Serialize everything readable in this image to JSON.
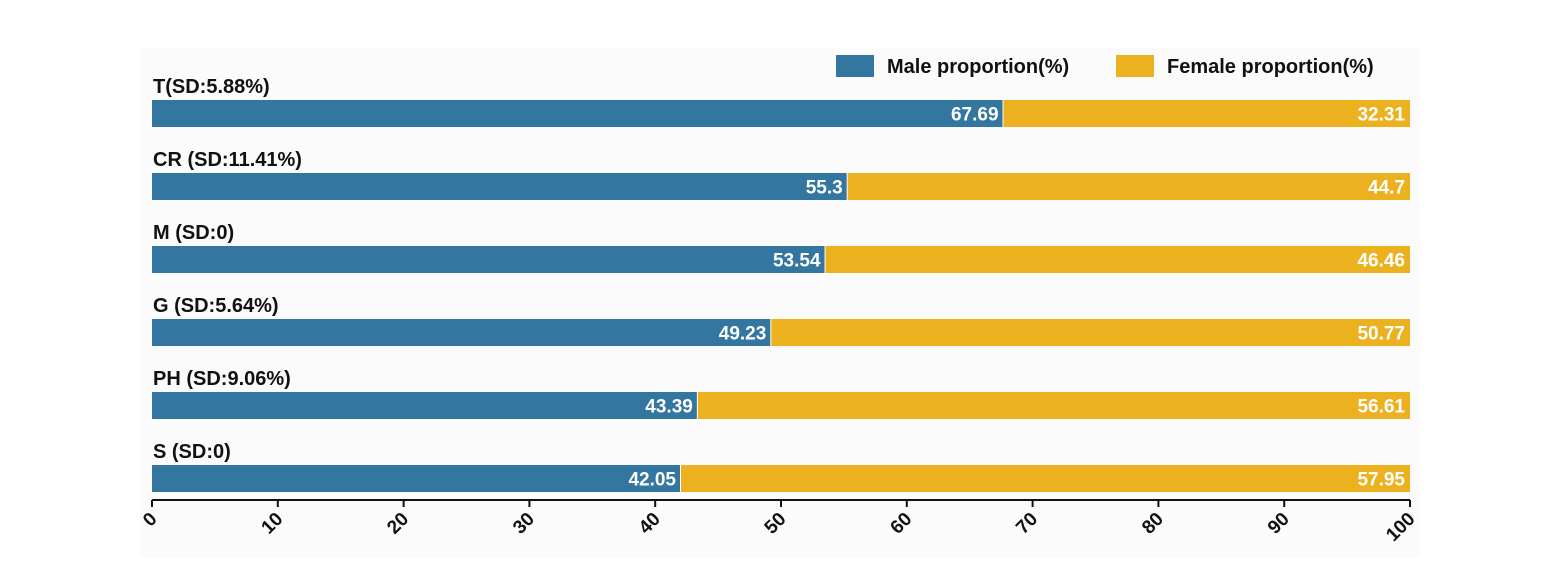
{
  "chart_data": {
    "type": "bar",
    "orientation": "horizontal",
    "stacked": true,
    "categories": [
      "T(SD:5.88%)",
      "CR (SD:11.41%)",
      "M (SD:0)",
      "G (SD:5.64%)",
      "PH (SD:9.06%)",
      "S (SD:0)"
    ],
    "series": [
      {
        "name": "Male proportion(%)",
        "color": "#33769f",
        "values": [
          67.69,
          55.3,
          53.54,
          49.23,
          43.39,
          42.05
        ],
        "labels": [
          "67.69",
          "55.3",
          "53.54",
          "49.23",
          "43.39",
          "42.05"
        ]
      },
      {
        "name": "Female proportion(%)",
        "color": "#ecb11f",
        "values": [
          32.31,
          44.7,
          46.46,
          50.77,
          56.61,
          57.95
        ],
        "labels": [
          "32.31",
          "44.7",
          "46.46",
          "50.77",
          "56.61",
          "57.95"
        ]
      }
    ],
    "xlim": [
      0,
      100
    ],
    "xticks": [
      0,
      10,
      20,
      30,
      40,
      50,
      60,
      70,
      80,
      90,
      100
    ],
    "xtick_labels": [
      "0",
      "10",
      "20",
      "30",
      "40",
      "50",
      "60",
      "70",
      "80",
      "90",
      "100"
    ],
    "legend_position": "top-right",
    "grid": false
  }
}
